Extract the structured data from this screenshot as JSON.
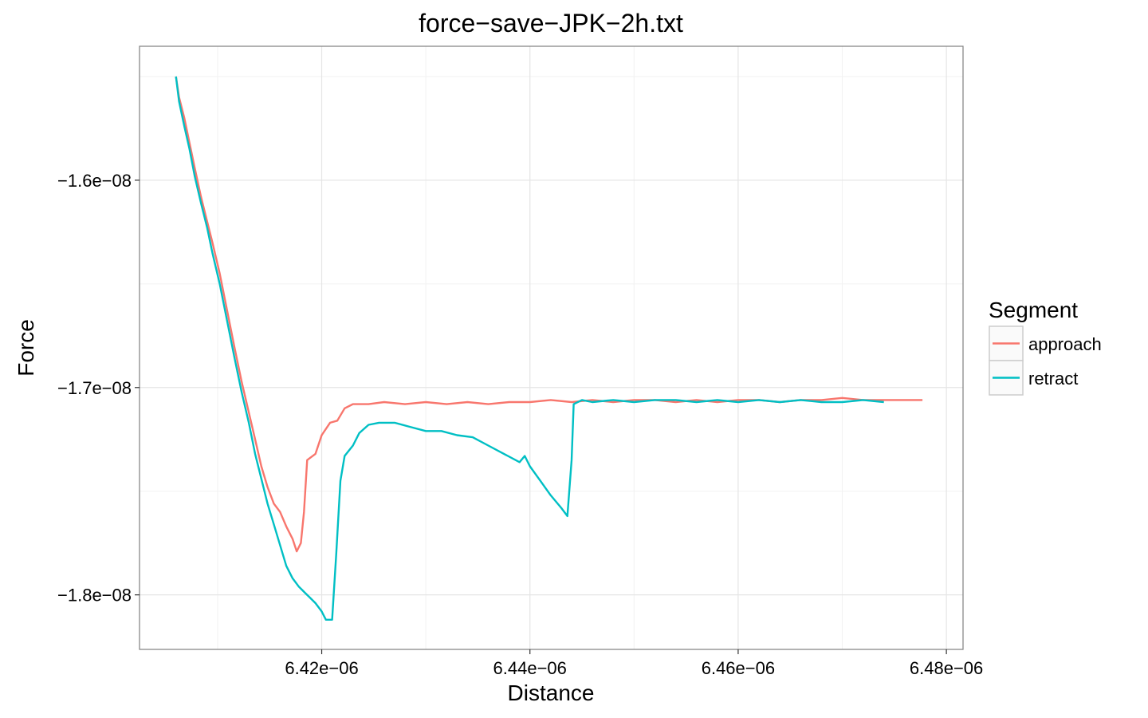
{
  "chart_data": {
    "type": "line",
    "title": "force−save−JPK−2h.txt",
    "xlabel": "Distance",
    "ylabel": "Force",
    "xlim": [
      6.4025e-06,
      6.4816e-06
    ],
    "ylim": [
      -1.8263e-08,
      -1.5354e-08
    ],
    "xticks": [
      6.42e-06,
      6.44e-06,
      6.46e-06,
      6.48e-06
    ],
    "xtick_labels": [
      "6.42e−06",
      "6.44e−06",
      "6.46e−06",
      "6.48e−06"
    ],
    "yticks": [
      -1.6e-08,
      -1.7e-08,
      -1.8e-08
    ],
    "ytick_labels": [
      "−1.6e−08",
      "−1.7e−08",
      "−1.8e−08"
    ],
    "grid": true,
    "legend": {
      "title": "Segment",
      "position": "right"
    },
    "series": [
      {
        "name": "approach",
        "color": "#F8766D",
        "points": [
          [
            6.406e-06,
            -1.55e-08
          ],
          [
            6.4063e-06,
            -1.56e-08
          ],
          [
            6.4068e-06,
            -1.57e-08
          ],
          [
            6.4073e-06,
            -1.582e-08
          ],
          [
            6.4078e-06,
            -1.594e-08
          ],
          [
            6.4084e-06,
            -1.608e-08
          ],
          [
            6.409e-06,
            -1.62e-08
          ],
          [
            6.4095e-06,
            -1.63e-08
          ],
          [
            6.4102e-06,
            -1.645e-08
          ],
          [
            6.4108e-06,
            -1.66e-08
          ],
          [
            6.4116e-06,
            -1.68e-08
          ],
          [
            6.4123e-06,
            -1.697e-08
          ],
          [
            6.413e-06,
            -1.712e-08
          ],
          [
            6.4136e-06,
            -1.725e-08
          ],
          [
            6.4142e-06,
            -1.738e-08
          ],
          [
            6.4148e-06,
            -1.748e-08
          ],
          [
            6.4154e-06,
            -1.756e-08
          ],
          [
            6.416e-06,
            -1.76e-08
          ],
          [
            6.4166e-06,
            -1.767e-08
          ],
          [
            6.4172e-06,
            -1.773e-08
          ],
          [
            6.4176e-06,
            -1.779e-08
          ],
          [
            6.418e-06,
            -1.775e-08
          ],
          [
            6.4183e-06,
            -1.76e-08
          ],
          [
            6.4186e-06,
            -1.735e-08
          ],
          [
            6.4194e-06,
            -1.732e-08
          ],
          [
            6.42e-06,
            -1.723e-08
          ],
          [
            6.4208e-06,
            -1.717e-08
          ],
          [
            6.4215e-06,
            -1.716e-08
          ],
          [
            6.4222e-06,
            -1.71e-08
          ],
          [
            6.423e-06,
            -1.708e-08
          ],
          [
            6.4245e-06,
            -1.708e-08
          ],
          [
            6.426e-06,
            -1.707e-08
          ],
          [
            6.428e-06,
            -1.708e-08
          ],
          [
            6.43e-06,
            -1.707e-08
          ],
          [
            6.432e-06,
            -1.708e-08
          ],
          [
            6.434e-06,
            -1.707e-08
          ],
          [
            6.436e-06,
            -1.708e-08
          ],
          [
            6.438e-06,
            -1.707e-08
          ],
          [
            6.44e-06,
            -1.707e-08
          ],
          [
            6.442e-06,
            -1.706e-08
          ],
          [
            6.444e-06,
            -1.707e-08
          ],
          [
            6.446e-06,
            -1.706e-08
          ],
          [
            6.448e-06,
            -1.707e-08
          ],
          [
            6.45e-06,
            -1.706e-08
          ],
          [
            6.452e-06,
            -1.706e-08
          ],
          [
            6.454e-06,
            -1.707e-08
          ],
          [
            6.456e-06,
            -1.706e-08
          ],
          [
            6.458e-06,
            -1.707e-08
          ],
          [
            6.46e-06,
            -1.706e-08
          ],
          [
            6.462e-06,
            -1.706e-08
          ],
          [
            6.464e-06,
            -1.707e-08
          ],
          [
            6.466e-06,
            -1.706e-08
          ],
          [
            6.468e-06,
            -1.706e-08
          ],
          [
            6.47e-06,
            -1.705e-08
          ],
          [
            6.472e-06,
            -1.706e-08
          ],
          [
            6.474e-06,
            -1.706e-08
          ],
          [
            6.476e-06,
            -1.706e-08
          ],
          [
            6.4777e-06,
            -1.706e-08
          ]
        ]
      },
      {
        "name": "retract",
        "color": "#00BFC4",
        "points": [
          [
            6.406e-06,
            -1.55e-08
          ],
          [
            6.4063e-06,
            -1.562e-08
          ],
          [
            6.4068e-06,
            -1.574e-08
          ],
          [
            6.4073e-06,
            -1.585e-08
          ],
          [
            6.4078e-06,
            -1.598e-08
          ],
          [
            6.4084e-06,
            -1.611e-08
          ],
          [
            6.409e-06,
            -1.623e-08
          ],
          [
            6.4095e-06,
            -1.635e-08
          ],
          [
            6.4102e-06,
            -1.65e-08
          ],
          [
            6.4108e-06,
            -1.665e-08
          ],
          [
            6.4116e-06,
            -1.685e-08
          ],
          [
            6.4123e-06,
            -1.702e-08
          ],
          [
            6.413e-06,
            -1.717e-08
          ],
          [
            6.4136e-06,
            -1.732e-08
          ],
          [
            6.4142e-06,
            -1.744e-08
          ],
          [
            6.4148e-06,
            -1.756e-08
          ],
          [
            6.4154e-06,
            -1.766e-08
          ],
          [
            6.416e-06,
            -1.776e-08
          ],
          [
            6.4166e-06,
            -1.786e-08
          ],
          [
            6.4172e-06,
            -1.792e-08
          ],
          [
            6.4178e-06,
            -1.796e-08
          ],
          [
            6.4184e-06,
            -1.799e-08
          ],
          [
            6.4188e-06,
            -1.801e-08
          ],
          [
            6.4194e-06,
            -1.804e-08
          ],
          [
            6.42e-06,
            -1.808e-08
          ],
          [
            6.4204e-06,
            -1.812e-08
          ],
          [
            6.421e-06,
            -1.812e-08
          ],
          [
            6.4214e-06,
            -1.78e-08
          ],
          [
            6.4218e-06,
            -1.745e-08
          ],
          [
            6.4222e-06,
            -1.733e-08
          ],
          [
            6.423e-06,
            -1.728e-08
          ],
          [
            6.4236e-06,
            -1.722e-08
          ],
          [
            6.4245e-06,
            -1.718e-08
          ],
          [
            6.4255e-06,
            -1.717e-08
          ],
          [
            6.427e-06,
            -1.717e-08
          ],
          [
            6.4285e-06,
            -1.719e-08
          ],
          [
            6.43e-06,
            -1.721e-08
          ],
          [
            6.4315e-06,
            -1.721e-08
          ],
          [
            6.433e-06,
            -1.723e-08
          ],
          [
            6.4345e-06,
            -1.724e-08
          ],
          [
            6.436e-06,
            -1.728e-08
          ],
          [
            6.4375e-06,
            -1.732e-08
          ],
          [
            6.439e-06,
            -1.736e-08
          ],
          [
            6.4395e-06,
            -1.733e-08
          ],
          [
            6.44e-06,
            -1.738e-08
          ],
          [
            6.441e-06,
            -1.745e-08
          ],
          [
            6.442e-06,
            -1.752e-08
          ],
          [
            6.443e-06,
            -1.758e-08
          ],
          [
            6.4436e-06,
            -1.762e-08
          ],
          [
            6.444e-06,
            -1.735e-08
          ],
          [
            6.4442e-06,
            -1.708e-08
          ],
          [
            6.445e-06,
            -1.706e-08
          ],
          [
            6.446e-06,
            -1.707e-08
          ],
          [
            6.448e-06,
            -1.706e-08
          ],
          [
            6.45e-06,
            -1.707e-08
          ],
          [
            6.452e-06,
            -1.706e-08
          ],
          [
            6.454e-06,
            -1.706e-08
          ],
          [
            6.456e-06,
            -1.707e-08
          ],
          [
            6.458e-06,
            -1.706e-08
          ],
          [
            6.46e-06,
            -1.707e-08
          ],
          [
            6.462e-06,
            -1.706e-08
          ],
          [
            6.464e-06,
            -1.707e-08
          ],
          [
            6.466e-06,
            -1.706e-08
          ],
          [
            6.468e-06,
            -1.707e-08
          ],
          [
            6.47e-06,
            -1.707e-08
          ],
          [
            6.472e-06,
            -1.706e-08
          ],
          [
            6.474e-06,
            -1.707e-08
          ]
        ]
      }
    ]
  }
}
